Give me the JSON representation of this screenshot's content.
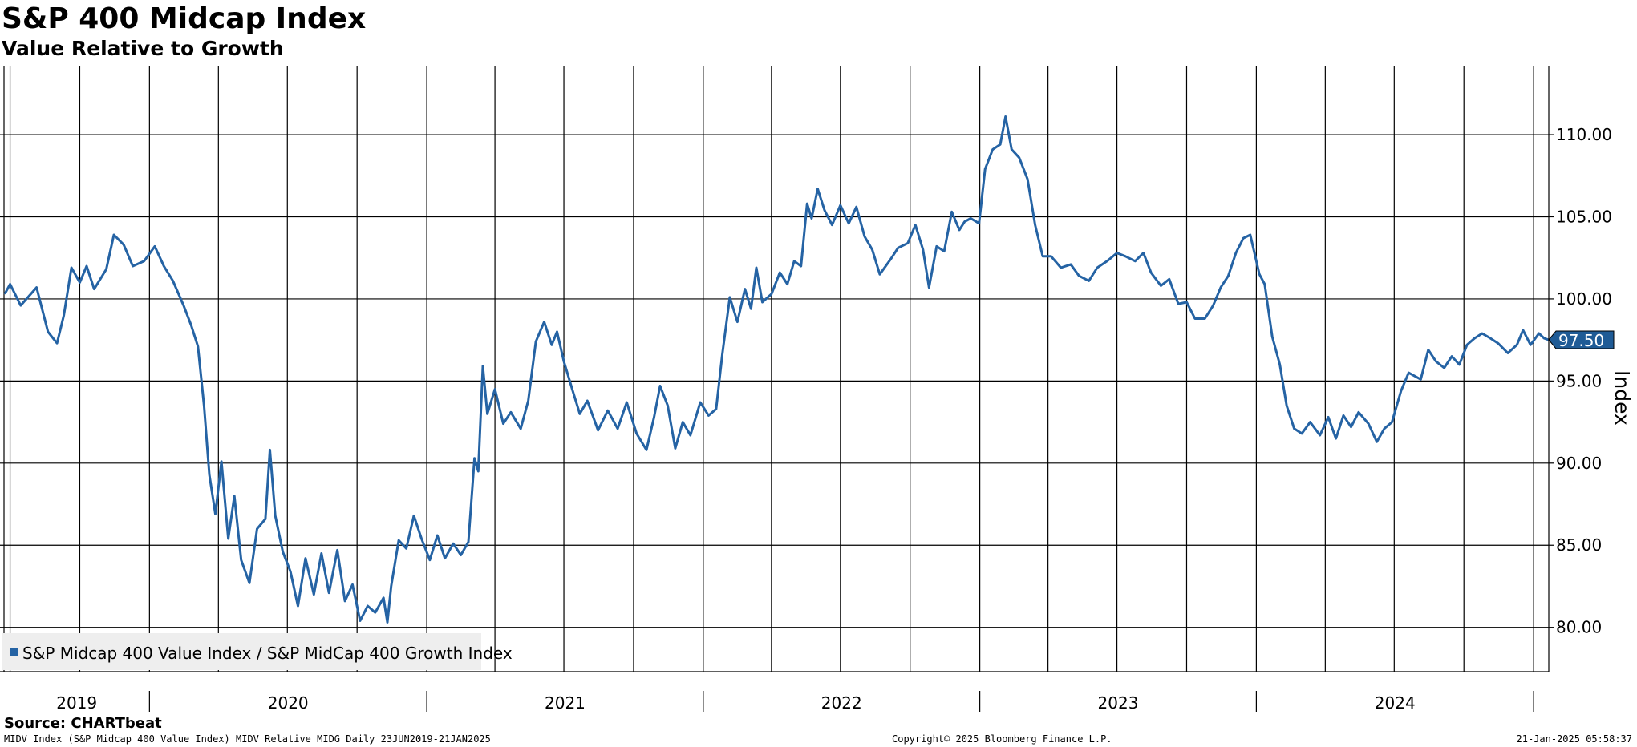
{
  "header": {
    "title": "S&P 400 Midcap Index",
    "subtitle": "Value Relative to Growth"
  },
  "footer": {
    "source": "Source: CHARTbeat",
    "left": "MIDV Index (S&P Midcap 400 Value Index) MIDV Relative MIDG  Daily 23JUN2019-21JAN2025",
    "center": "Copyright© 2025 Bloomberg Finance L.P.",
    "right": "21-Jan-2025 05:58:37"
  },
  "colors": {
    "series": "#2563a4",
    "grid": "#000000",
    "legend_bg": "#eeeeee",
    "background": "#ffffff"
  },
  "chart_data": {
    "type": "line",
    "title": "S&P 400 Midcap Index",
    "subtitle": "Value Relative to Growth",
    "ylabel": "Index",
    "ylim": [
      77.3,
      114.2
    ],
    "xlim": [
      "2019-06-23",
      "2025-01-21"
    ],
    "y_ticks": [
      "80.00",
      "85.00",
      "90.00",
      "95.00",
      "100.00",
      "105.00",
      "110.00"
    ],
    "x_year_labels": [
      "2019",
      "2020",
      "2021",
      "2022",
      "2023",
      "2024"
    ],
    "grid": true,
    "legend_position": "bottom-left",
    "last_value_label": "97.50",
    "series": [
      {
        "name": "S&P Midcap 400 Value Index / S&P MidCap 400 Growth Index",
        "points": [
          [
            "2019-06-24",
            100.3
          ],
          [
            "2019-07-01",
            100.9
          ],
          [
            "2019-07-15",
            99.6
          ],
          [
            "2019-08-05",
            100.7
          ],
          [
            "2019-08-20",
            98.0
          ],
          [
            "2019-09-01",
            97.3
          ],
          [
            "2019-09-10",
            99.0
          ],
          [
            "2019-09-20",
            101.9
          ],
          [
            "2019-10-01",
            101.0
          ],
          [
            "2019-10-10",
            102.0
          ],
          [
            "2019-10-20",
            100.6
          ],
          [
            "2019-11-05",
            101.8
          ],
          [
            "2019-11-15",
            103.9
          ],
          [
            "2019-11-28",
            103.3
          ],
          [
            "2019-12-10",
            102.0
          ],
          [
            "2019-12-25",
            102.3
          ],
          [
            "2020-01-08",
            103.2
          ],
          [
            "2020-01-20",
            102.0
          ],
          [
            "2020-02-01",
            101.1
          ],
          [
            "2020-02-15",
            99.6
          ],
          [
            "2020-02-25",
            98.4
          ],
          [
            "2020-03-05",
            97.1
          ],
          [
            "2020-03-13",
            93.5
          ],
          [
            "2020-03-20",
            89.3
          ],
          [
            "2020-03-28",
            86.9
          ],
          [
            "2020-04-05",
            90.1
          ],
          [
            "2020-04-14",
            85.4
          ],
          [
            "2020-04-22",
            88.0
          ],
          [
            "2020-05-01",
            84.1
          ],
          [
            "2020-05-12",
            82.7
          ],
          [
            "2020-05-22",
            86.0
          ],
          [
            "2020-06-02",
            86.6
          ],
          [
            "2020-06-08",
            90.8
          ],
          [
            "2020-06-15",
            86.8
          ],
          [
            "2020-06-25",
            84.6
          ],
          [
            "2020-07-05",
            83.4
          ],
          [
            "2020-07-15",
            81.3
          ],
          [
            "2020-07-25",
            84.2
          ],
          [
            "2020-08-05",
            82.0
          ],
          [
            "2020-08-15",
            84.5
          ],
          [
            "2020-08-25",
            82.1
          ],
          [
            "2020-09-05",
            84.7
          ],
          [
            "2020-09-15",
            81.6
          ],
          [
            "2020-09-25",
            82.6
          ],
          [
            "2020-10-05",
            80.4
          ],
          [
            "2020-10-15",
            81.3
          ],
          [
            "2020-10-25",
            80.9
          ],
          [
            "2020-11-05",
            81.8
          ],
          [
            "2020-11-10",
            80.3
          ],
          [
            "2020-11-15",
            82.5
          ],
          [
            "2020-11-25",
            85.3
          ],
          [
            "2020-12-05",
            84.8
          ],
          [
            "2020-12-15",
            86.8
          ],
          [
            "2020-12-25",
            85.4
          ],
          [
            "2021-01-05",
            84.1
          ],
          [
            "2021-01-15",
            85.6
          ],
          [
            "2021-01-25",
            84.2
          ],
          [
            "2021-02-05",
            85.1
          ],
          [
            "2021-02-15",
            84.4
          ],
          [
            "2021-02-25",
            85.2
          ],
          [
            "2021-03-05",
            90.3
          ],
          [
            "2021-03-10",
            89.5
          ],
          [
            "2021-03-16",
            95.9
          ],
          [
            "2021-03-22",
            93.0
          ],
          [
            "2021-04-01",
            94.5
          ],
          [
            "2021-04-12",
            92.4
          ],
          [
            "2021-04-22",
            93.1
          ],
          [
            "2021-05-05",
            92.1
          ],
          [
            "2021-05-15",
            93.8
          ],
          [
            "2021-05-25",
            97.4
          ],
          [
            "2021-06-05",
            98.6
          ],
          [
            "2021-06-15",
            97.2
          ],
          [
            "2021-06-22",
            98.0
          ],
          [
            "2021-07-01",
            96.2
          ],
          [
            "2021-07-12",
            94.5
          ],
          [
            "2021-07-22",
            93.0
          ],
          [
            "2021-08-01",
            93.8
          ],
          [
            "2021-08-15",
            92.0
          ],
          [
            "2021-08-28",
            93.2
          ],
          [
            "2021-09-10",
            92.1
          ],
          [
            "2021-09-22",
            93.7
          ],
          [
            "2021-10-05",
            91.8
          ],
          [
            "2021-10-18",
            90.8
          ],
          [
            "2021-10-28",
            92.8
          ],
          [
            "2021-11-05",
            94.7
          ],
          [
            "2021-11-15",
            93.5
          ],
          [
            "2021-11-25",
            90.9
          ],
          [
            "2021-12-05",
            92.5
          ],
          [
            "2021-12-15",
            91.7
          ],
          [
            "2021-12-28",
            93.7
          ],
          [
            "2022-01-08",
            92.9
          ],
          [
            "2022-01-18",
            93.3
          ],
          [
            "2022-01-26",
            96.6
          ],
          [
            "2022-02-05",
            100.1
          ],
          [
            "2022-02-15",
            98.6
          ],
          [
            "2022-02-25",
            100.6
          ],
          [
            "2022-03-05",
            99.4
          ],
          [
            "2022-03-12",
            101.9
          ],
          [
            "2022-03-20",
            99.8
          ],
          [
            "2022-04-01",
            100.3
          ],
          [
            "2022-04-12",
            101.6
          ],
          [
            "2022-04-22",
            100.9
          ],
          [
            "2022-05-01",
            102.3
          ],
          [
            "2022-05-10",
            102.0
          ],
          [
            "2022-05-18",
            105.8
          ],
          [
            "2022-05-24",
            104.9
          ],
          [
            "2022-06-01",
            106.7
          ],
          [
            "2022-06-10",
            105.4
          ],
          [
            "2022-06-20",
            104.5
          ],
          [
            "2022-07-01",
            105.7
          ],
          [
            "2022-07-12",
            104.6
          ],
          [
            "2022-07-22",
            105.6
          ],
          [
            "2022-08-02",
            103.8
          ],
          [
            "2022-08-12",
            103.0
          ],
          [
            "2022-08-22",
            101.5
          ],
          [
            "2022-09-05",
            102.4
          ],
          [
            "2022-09-15",
            103.1
          ],
          [
            "2022-09-28",
            103.4
          ],
          [
            "2022-10-08",
            104.5
          ],
          [
            "2022-10-18",
            103.0
          ],
          [
            "2022-10-26",
            100.7
          ],
          [
            "2022-11-05",
            103.2
          ],
          [
            "2022-11-15",
            102.9
          ],
          [
            "2022-11-25",
            105.3
          ],
          [
            "2022-12-05",
            104.2
          ],
          [
            "2022-12-12",
            104.7
          ],
          [
            "2022-12-20",
            104.9
          ],
          [
            "2022-12-31",
            104.6
          ],
          [
            "2023-01-08",
            107.9
          ],
          [
            "2023-01-18",
            109.1
          ],
          [
            "2023-01-28",
            109.4
          ],
          [
            "2023-02-04",
            111.1
          ],
          [
            "2023-02-12",
            109.1
          ],
          [
            "2023-02-22",
            108.6
          ],
          [
            "2023-03-05",
            107.3
          ],
          [
            "2023-03-15",
            104.5
          ],
          [
            "2023-03-25",
            102.6
          ],
          [
            "2023-04-05",
            102.6
          ],
          [
            "2023-04-18",
            101.9
          ],
          [
            "2023-05-01",
            102.1
          ],
          [
            "2023-05-12",
            101.4
          ],
          [
            "2023-05-25",
            101.1
          ],
          [
            "2023-06-05",
            101.9
          ],
          [
            "2023-06-18",
            102.3
          ],
          [
            "2023-07-01",
            102.8
          ],
          [
            "2023-07-12",
            102.6
          ],
          [
            "2023-07-25",
            102.3
          ],
          [
            "2023-08-05",
            102.8
          ],
          [
            "2023-08-15",
            101.6
          ],
          [
            "2023-08-28",
            100.8
          ],
          [
            "2023-09-08",
            101.2
          ],
          [
            "2023-09-20",
            99.7
          ],
          [
            "2023-10-01",
            99.8
          ],
          [
            "2023-10-12",
            98.8
          ],
          [
            "2023-10-25",
            98.8
          ],
          [
            "2023-11-05",
            99.6
          ],
          [
            "2023-11-15",
            100.7
          ],
          [
            "2023-11-25",
            101.4
          ],
          [
            "2023-12-05",
            102.8
          ],
          [
            "2023-12-15",
            103.7
          ],
          [
            "2023-12-24",
            103.9
          ],
          [
            "2024-01-05",
            101.5
          ],
          [
            "2024-01-12",
            100.9
          ],
          [
            "2024-01-22",
            97.7
          ],
          [
            "2024-02-01",
            96.0
          ],
          [
            "2024-02-10",
            93.5
          ],
          [
            "2024-02-20",
            92.1
          ],
          [
            "2024-03-01",
            91.8
          ],
          [
            "2024-03-12",
            92.5
          ],
          [
            "2024-03-25",
            91.7
          ],
          [
            "2024-04-05",
            92.8
          ],
          [
            "2024-04-15",
            91.5
          ],
          [
            "2024-04-25",
            92.9
          ],
          [
            "2024-05-05",
            92.2
          ],
          [
            "2024-05-15",
            93.1
          ],
          [
            "2024-05-28",
            92.4
          ],
          [
            "2024-06-08",
            91.3
          ],
          [
            "2024-06-18",
            92.1
          ],
          [
            "2024-06-28",
            92.5
          ],
          [
            "2024-07-10",
            94.4
          ],
          [
            "2024-07-20",
            95.5
          ],
          [
            "2024-08-05",
            95.1
          ],
          [
            "2024-08-15",
            96.9
          ],
          [
            "2024-08-25",
            96.2
          ],
          [
            "2024-09-05",
            95.8
          ],
          [
            "2024-09-15",
            96.5
          ],
          [
            "2024-09-25",
            96.0
          ],
          [
            "2024-10-05",
            97.2
          ],
          [
            "2024-10-15",
            97.6
          ],
          [
            "2024-10-25",
            97.9
          ],
          [
            "2024-11-05",
            97.6
          ],
          [
            "2024-11-15",
            97.3
          ],
          [
            "2024-11-28",
            96.7
          ],
          [
            "2024-12-10",
            97.2
          ],
          [
            "2024-12-18",
            98.1
          ],
          [
            "2024-12-28",
            97.2
          ],
          [
            "2025-01-08",
            97.9
          ],
          [
            "2025-01-15",
            97.6
          ],
          [
            "2025-01-21",
            97.5
          ]
        ]
      }
    ]
  }
}
